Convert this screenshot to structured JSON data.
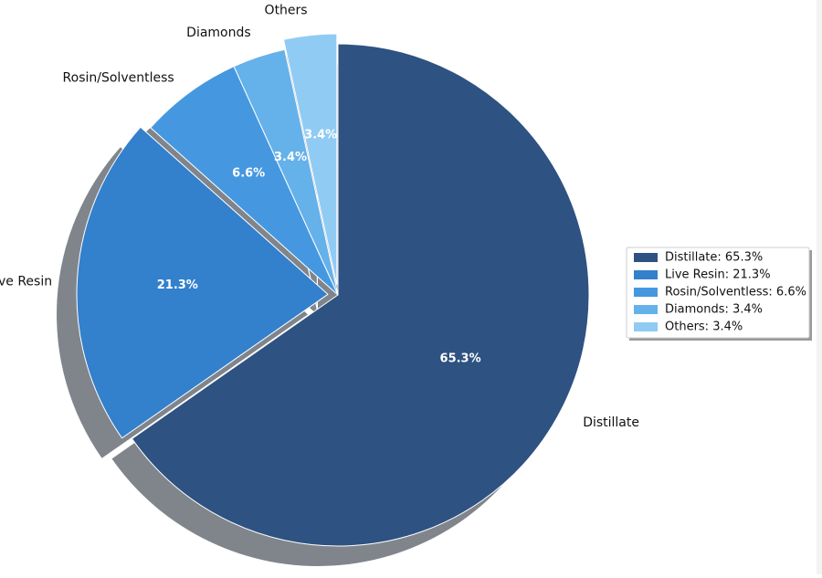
{
  "chart_data": {
    "type": "pie",
    "categories": [
      "Distillate",
      "Live Resin",
      "Rosin/Solventless",
      "Diamonds",
      "Others"
    ],
    "values": [
      65.3,
      21.3,
      6.6,
      3.4,
      3.4
    ],
    "percent_labels": [
      "65.3%",
      "21.3%",
      "6.6%",
      "3.4%",
      "3.4%"
    ],
    "colors": [
      "#2e5281",
      "#3380cc",
      "#4598e0",
      "#65b1ea",
      "#90cbf3"
    ],
    "explode": [
      0,
      0.04,
      0,
      0,
      0.04
    ],
    "shadow": true,
    "start_angle_deg": 90,
    "direction": "clockwise",
    "legend": {
      "placement": "center-right",
      "entries": [
        "Distillate: 65.3%",
        "Live Resin: 21.3%",
        "Rosin/Solventless: 6.6%",
        "Diamonds: 3.4%",
        "Others: 3.4%"
      ]
    },
    "title": ""
  }
}
